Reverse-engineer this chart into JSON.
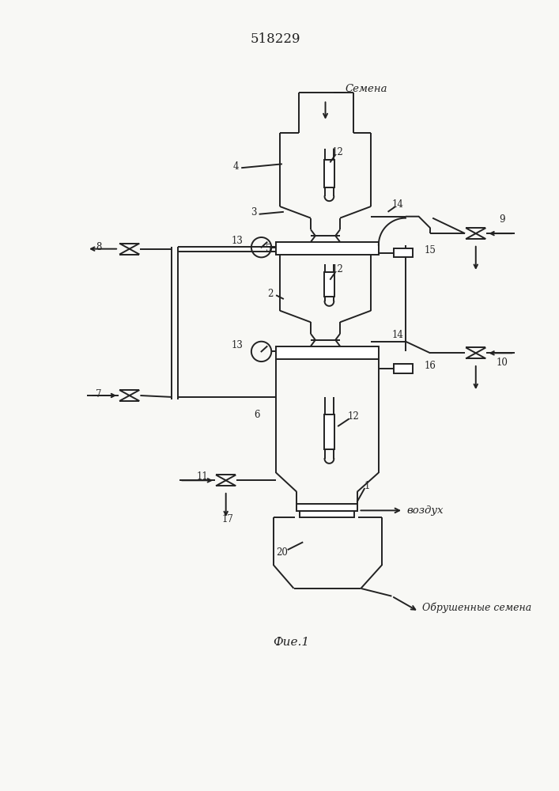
{
  "title": "518229",
  "bg": "#f8f8f5",
  "lc": "#222222",
  "semena": "Семена",
  "vozduh": "воздух",
  "obrush": "Обрушенные семена",
  "fig": "Фие.1"
}
